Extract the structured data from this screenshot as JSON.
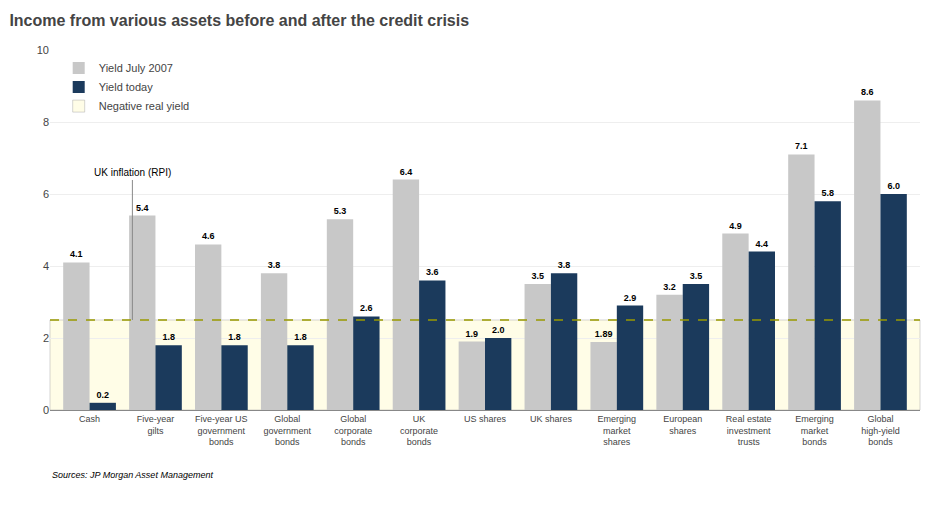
{
  "chart_data": {
    "type": "bar",
    "title": "Income from various assets before and after the credit crisis",
    "categories": [
      "Cash",
      "Five-year\ngilts",
      "Five-year US\ngovernment\nbonds",
      "Global\ngovernment\nbonds",
      "Global\ncorporate\nbonds",
      "UK\ncorporate\nbonds",
      "US shares",
      "UK shares",
      "Emerging\nmarket\nshares",
      "European\nshares",
      "Real estate\ninvestment\ntrusts",
      "Emerging\nmarket\nbonds",
      "Global\nhigh-yield\nbonds"
    ],
    "series": [
      {
        "name": "Yield July 2007",
        "color": "#c8c8c8",
        "values": [
          4.1,
          5.4,
          4.6,
          3.8,
          5.3,
          6.4,
          1.9,
          3.5,
          1.89,
          3.2,
          4.9,
          7.1,
          8.6
        ],
        "value_labels": [
          "4.1",
          "5.4",
          "4.6",
          "3.8",
          "5.3",
          "6.4",
          "1.9",
          "3.5",
          "1.89",
          "3.2",
          "4.9",
          "7.1",
          "8.6"
        ]
      },
      {
        "name": "Yield today",
        "color": "#1b3a5c",
        "values": [
          0.2,
          1.8,
          1.8,
          1.8,
          2.6,
          3.6,
          2.0,
          3.8,
          2.9,
          3.5,
          4.4,
          5.8,
          6.0
        ],
        "value_labels": [
          "0.2",
          "1.8",
          "1.8",
          "1.8",
          "2.6",
          "3.6",
          "2.0",
          "3.8",
          "2.9",
          "3.5",
          "4.4",
          "5.8",
          "6.0"
        ]
      }
    ],
    "ylim": [
      0,
      10
    ],
    "yticks": [
      0,
      2,
      4,
      6,
      8,
      10
    ],
    "grid": true,
    "legend": "upper left",
    "data_labels": true,
    "reference_line": {
      "value": 2.5,
      "label": "UK inflation (RPI)",
      "color": "#999900"
    },
    "band": {
      "name": "Negative real yield",
      "color": "#fffde7",
      "from": 0,
      "to": 2.5
    },
    "source": "Sources: JP Morgan Asset Management"
  }
}
